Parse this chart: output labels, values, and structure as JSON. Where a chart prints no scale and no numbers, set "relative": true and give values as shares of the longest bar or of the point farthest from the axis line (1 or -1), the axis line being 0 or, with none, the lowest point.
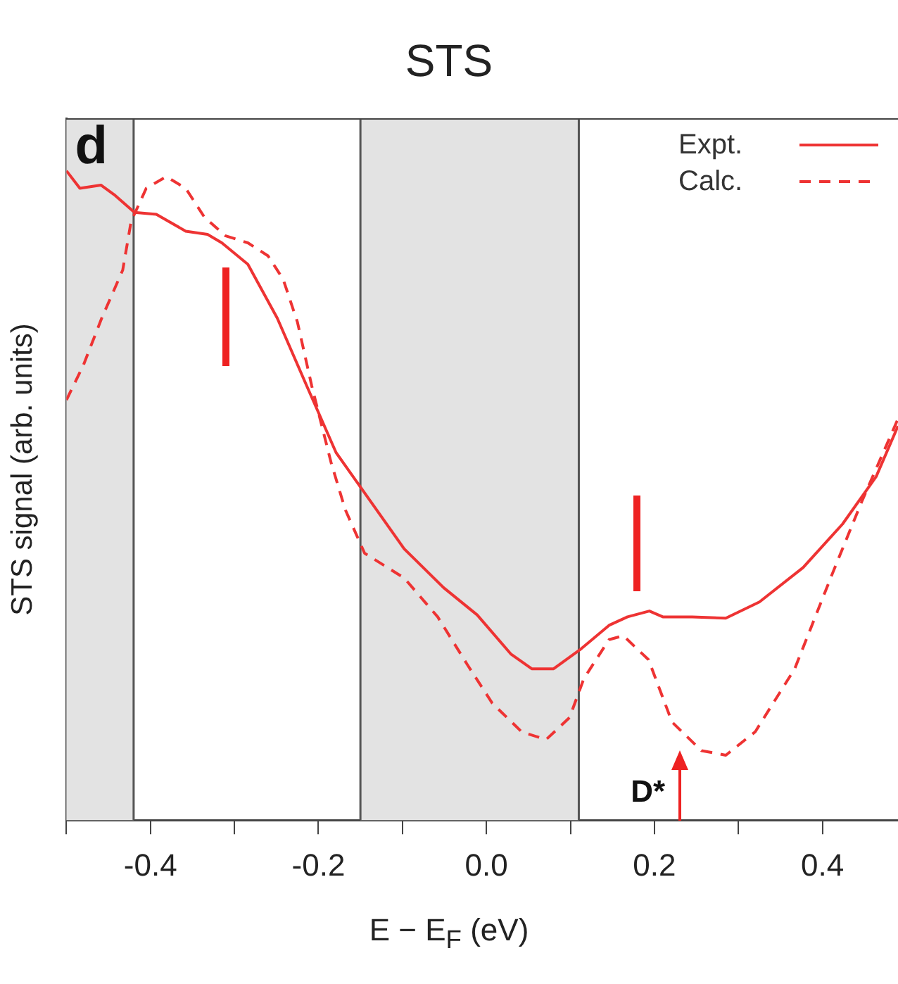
{
  "chart_data": {
    "type": "line",
    "title": "STS",
    "xlabel": "E − E$_{F}$ (eV)",
    "ylabel": "STS signal (arb. units)",
    "relative": true,
    "xlim": [
      -0.5,
      0.49
    ],
    "xticks": [
      {
        "value": -0.5,
        "label": null
      },
      -0.4,
      {
        "value": -0.3,
        "label": null
      },
      -0.2,
      {
        "value": -0.1,
        "label": null
      },
      {
        "value": 0,
        "label": "0.0"
      },
      {
        "value": 0.1,
        "label": null
      },
      0.2,
      {
        "value": 0.3,
        "label": null
      },
      0.4
    ],
    "legend": "top right",
    "grid": false,
    "bands": [
      {
        "axis": "x",
        "from": -0.5,
        "to": -0.42,
        "color": "#e3e3e3"
      },
      {
        "axis": "x",
        "from": -0.15,
        "to": 0.11,
        "color": "#e3e3e3"
      }
    ],
    "annotations": [
      "d",
      "D*"
    ],
    "series": [
      {
        "name": "Expt.",
        "color": "#ee3333",
        "line_style": "solid",
        "x": [
          -0.5,
          -0.484,
          -0.459,
          -0.442,
          -0.419,
          -0.393,
          -0.358,
          -0.332,
          -0.315,
          -0.284,
          -0.249,
          -0.214,
          -0.179,
          -0.15,
          -0.098,
          -0.051,
          -0.011,
          0.029,
          0.054,
          0.08,
          0.111,
          0.146,
          0.168,
          0.194,
          0.21,
          0.245,
          0.285,
          0.325,
          0.377,
          0.424,
          0.464,
          0.49
        ],
        "values": [
          1.0,
          0.973,
          0.978,
          0.962,
          0.936,
          0.933,
          0.907,
          0.902,
          0.889,
          0.856,
          0.773,
          0.669,
          0.566,
          0.513,
          0.418,
          0.358,
          0.316,
          0.256,
          0.233,
          0.233,
          0.262,
          0.3,
          0.313,
          0.322,
          0.313,
          0.313,
          0.311,
          0.336,
          0.389,
          0.456,
          0.529,
          0.607
        ]
      },
      {
        "name": "Calc.",
        "color": "#ee3333",
        "line_style": "dashed",
        "x": [
          -0.5,
          -0.48,
          -0.458,
          -0.433,
          -0.423,
          -0.405,
          -0.381,
          -0.358,
          -0.336,
          -0.311,
          -0.284,
          -0.26,
          -0.242,
          -0.225,
          -0.208,
          -0.185,
          -0.168,
          -0.145,
          -0.098,
          -0.058,
          -0.023,
          0.007,
          0.042,
          0.071,
          0.099,
          0.116,
          0.146,
          0.163,
          0.193,
          0.221,
          0.256,
          0.285,
          0.32,
          0.367,
          0.412,
          0.447,
          0.49
        ],
        "values": [
          0.647,
          0.7,
          0.773,
          0.847,
          0.922,
          0.973,
          0.991,
          0.973,
          0.929,
          0.9,
          0.889,
          0.869,
          0.833,
          0.767,
          0.669,
          0.551,
          0.478,
          0.411,
          0.373,
          0.313,
          0.24,
          0.18,
          0.136,
          0.124,
          0.158,
          0.218,
          0.278,
          0.284,
          0.247,
          0.151,
          0.107,
          0.1,
          0.136,
          0.233,
          0.38,
          0.491,
          0.618
        ]
      }
    ]
  }
}
